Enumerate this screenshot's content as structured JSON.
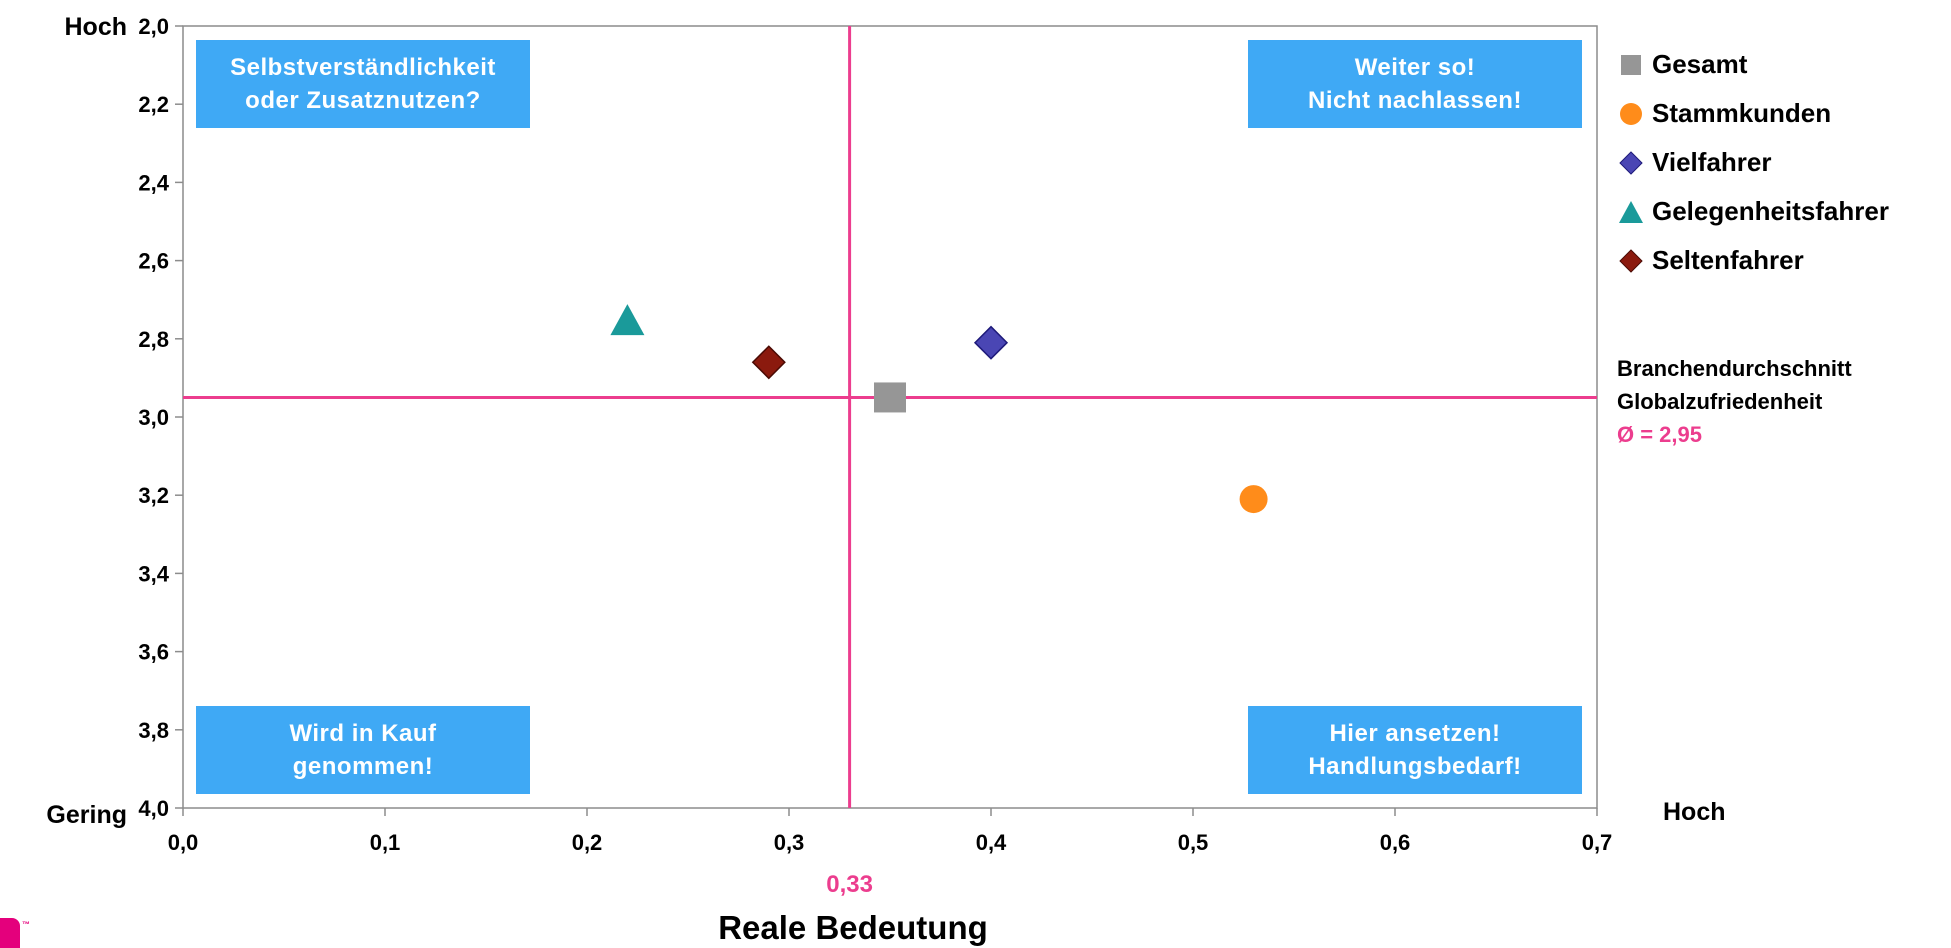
{
  "chart_data": {
    "type": "scatter",
    "xlabel": "Reale Bedeutung",
    "xlim": [
      0.0,
      0.7
    ],
    "ylim": [
      2.0,
      4.0
    ],
    "y_inverted": true,
    "x_ticks": [
      "0,0",
      "0,1",
      "0,2",
      "0,3",
      "0,4",
      "0,5",
      "0,6",
      "0,7"
    ],
    "y_ticks": [
      "2,0",
      "2,2",
      "2,4",
      "2,6",
      "2,8",
      "3,0",
      "3,2",
      "3,4",
      "3,6",
      "3,8",
      "4,0"
    ],
    "y_top_label": "Hoch",
    "y_bottom_label": "Gering",
    "x_right_label": "Hoch",
    "grid": false,
    "legend_position": "right",
    "series": [
      {
        "name": "Gesamt",
        "marker": "square",
        "color": "#969696",
        "x": 0.35,
        "y": 2.95
      },
      {
        "name": "Stammkunden",
        "marker": "circle",
        "color": "#ff8c1a",
        "x": 0.53,
        "y": 3.21
      },
      {
        "name": "Vielfahrer",
        "marker": "diamond",
        "color": "#4a46b4",
        "x": 0.4,
        "y": 2.81
      },
      {
        "name": "Gelegenheitsfahrer",
        "marker": "triangle",
        "color": "#1a9a9a",
        "x": 0.22,
        "y": 2.76
      },
      {
        "name": "Seltenfahrer",
        "marker": "diamond",
        "color": "#8b1a0e",
        "x": 0.29,
        "y": 2.86
      }
    ],
    "reference_lines": {
      "x": {
        "value": 0.33,
        "label": "0,33",
        "color": "#ec3d8e"
      },
      "y": {
        "value": 2.95,
        "color": "#ec3d8e"
      }
    },
    "quadrant_labels": {
      "top_left": [
        "Selbstverständlichkeit",
        "oder Zusatznutzen?"
      ],
      "top_right": [
        "Weiter so!",
        "Nicht nachlassen!"
      ],
      "bottom_left": [
        "Wird in Kauf",
        "genommen!"
      ],
      "bottom_right": [
        "Hier ansetzen!",
        "Handlungsbedarf!"
      ]
    },
    "quadrant_color": "#3fa9f5",
    "side_note": {
      "line1": "Branchendurchschnitt",
      "line2": "Globalzufriedenheit",
      "value": "Ø = 2,95"
    }
  }
}
